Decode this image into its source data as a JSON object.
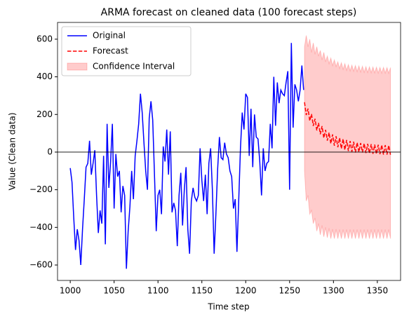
{
  "chart_data": {
    "type": "line",
    "title": "ARMA forecast on cleaned data (100 forecast steps)",
    "x_label": "Time step",
    "y_label": "Value (Clean data)",
    "xlim": [
      985.5,
      1376.5
    ],
    "xticks": [
      1000,
      1050,
      1100,
      1150,
      1200,
      1250,
      1300,
      1350
    ],
    "ylim": [
      -682,
      689
    ],
    "yticks": [
      {
        "value": -600,
        "label": "−600"
      },
      {
        "value": -400,
        "label": "−400"
      },
      {
        "value": -200,
        "label": "−200"
      },
      0,
      200,
      400,
      600
    ],
    "hline": 0,
    "legend": "upper left",
    "series": [
      {
        "name": "Original",
        "color": "#0000ff",
        "style": "solid",
        "x": [
          1000,
          1002,
          1004,
          1006,
          1008,
          1010,
          1012,
          1014,
          1016,
          1018,
          1020,
          1022,
          1024,
          1026,
          1028,
          1030,
          1032,
          1034,
          1036,
          1038,
          1040,
          1042,
          1044,
          1046,
          1048,
          1050,
          1052,
          1054,
          1056,
          1058,
          1060,
          1062,
          1064,
          1066,
          1068,
          1070,
          1072,
          1074,
          1076,
          1078,
          1080,
          1082,
          1084,
          1086,
          1088,
          1090,
          1092,
          1094,
          1096,
          1098,
          1100,
          1102,
          1104,
          1106,
          1108,
          1110,
          1112,
          1114,
          1116,
          1118,
          1120,
          1122,
          1124,
          1126,
          1128,
          1130,
          1132,
          1134,
          1136,
          1138,
          1140,
          1142,
          1144,
          1146,
          1148,
          1150,
          1152,
          1154,
          1156,
          1158,
          1160,
          1162,
          1164,
          1166,
          1168,
          1170,
          1172,
          1174,
          1176,
          1178,
          1180,
          1182,
          1184,
          1186,
          1188,
          1190,
          1192,
          1194,
          1196,
          1198,
          1200,
          1202,
          1204,
          1206,
          1208,
          1210,
          1212,
          1214,
          1216,
          1218,
          1220,
          1222,
          1224,
          1226,
          1228,
          1230,
          1232,
          1234,
          1236,
          1238,
          1240,
          1242,
          1244,
          1246,
          1248,
          1250,
          1252,
          1254,
          1256,
          1258,
          1260,
          1262,
          1264,
          1266
        ],
        "values": [
          -85,
          -160,
          -350,
          -520,
          -410,
          -470,
          -600,
          -410,
          -250,
          -80,
          -60,
          60,
          -120,
          -60,
          10,
          -230,
          -430,
          -310,
          -380,
          -20,
          -490,
          150,
          -190,
          -50,
          150,
          -300,
          -10,
          -130,
          -100,
          -320,
          -180,
          -230,
          -620,
          -420,
          -290,
          -100,
          -250,
          -20,
          60,
          150,
          310,
          210,
          50,
          -100,
          -200,
          180,
          270,
          170,
          -120,
          -420,
          -230,
          -200,
          -330,
          30,
          -50,
          120,
          -120,
          110,
          -320,
          -270,
          -310,
          -500,
          -230,
          -110,
          -390,
          -200,
          -80,
          -410,
          -540,
          -260,
          -190,
          -240,
          -260,
          -230,
          20,
          -150,
          -260,
          -120,
          -330,
          -60,
          20,
          -200,
          -540,
          -330,
          -90,
          80,
          -30,
          -40,
          50,
          -10,
          -30,
          -100,
          -130,
          -300,
          -250,
          -530,
          -260,
          20,
          210,
          120,
          310,
          290,
          -20,
          230,
          -80,
          200,
          80,
          70,
          -50,
          -230,
          20,
          -100,
          -60,
          -50,
          150,
          20,
          400,
          140,
          370,
          260,
          330,
          310,
          300,
          370,
          430,
          -200,
          580,
          130,
          360,
          330,
          270,
          330,
          460,
          330
        ]
      },
      {
        "name": "Forecast",
        "color": "#ff0000",
        "style": "dashed",
        "x": [
          1267,
          1269,
          1271,
          1273,
          1275,
          1277,
          1279,
          1281,
          1283,
          1285,
          1287,
          1289,
          1291,
          1293,
          1295,
          1297,
          1299,
          1301,
          1303,
          1305,
          1307,
          1309,
          1311,
          1313,
          1315,
          1317,
          1319,
          1321,
          1323,
          1325,
          1327,
          1329,
          1331,
          1333,
          1335,
          1337,
          1339,
          1341,
          1343,
          1345,
          1347,
          1349,
          1351,
          1353,
          1355,
          1357,
          1359,
          1361,
          1363,
          1365
        ],
        "values": [
          265,
          197,
          231,
          166,
          202,
          139,
          177,
          115,
          155,
          95,
          138,
          75,
          118,
          61,
          104,
          45,
          94,
          34,
          84,
          26,
          76,
          18,
          70,
          12,
          64,
          6,
          59,
          2,
          55,
          -2,
          51,
          0,
          48,
          -2,
          46,
          -5,
          44,
          -6,
          42,
          -9,
          40,
          -10,
          39,
          -11,
          38,
          -13,
          37,
          -13,
          36,
          -14
        ]
      },
      {
        "name": "Confidence Interval",
        "color": "#ff0000",
        "style": "band",
        "opacity": 0.2,
        "x": [
          1267,
          1269,
          1271,
          1273,
          1275,
          1277,
          1279,
          1281,
          1283,
          1285,
          1287,
          1289,
          1291,
          1293,
          1295,
          1297,
          1299,
          1301,
          1303,
          1305,
          1307,
          1309,
          1311,
          1313,
          1315,
          1317,
          1319,
          1321,
          1323,
          1325,
          1327,
          1329,
          1331,
          1333,
          1335,
          1337,
          1339,
          1341,
          1343,
          1345,
          1347,
          1349,
          1351,
          1353,
          1355,
          1357,
          1359,
          1361,
          1363,
          1365
        ],
        "upper": [
          560,
          620,
          560,
          600,
          530,
          580,
          520,
          560,
          510,
          540,
          490,
          530,
          480,
          510,
          470,
          500,
          460,
          490,
          455,
          480,
          445,
          475,
          440,
          470,
          435,
          465,
          432,
          462,
          430,
          460,
          428,
          458,
          426,
          456,
          424,
          454,
          423,
          453,
          422,
          452,
          421,
          451,
          420,
          450,
          420,
          450,
          420,
          449,
          419,
          449
        ],
        "lower": [
          -100,
          -260,
          -230,
          -330,
          -310,
          -380,
          -350,
          -420,
          -380,
          -440,
          -390,
          -450,
          -400,
          -455,
          -405,
          -460,
          -410,
          -460,
          -410,
          -460,
          -412,
          -460,
          -412,
          -460,
          -412,
          -460,
          -412,
          -460,
          -412,
          -460,
          -412,
          -460,
          -412,
          -460,
          -412,
          -460,
          -412,
          -460,
          -412,
          -460,
          -412,
          -460,
          -412,
          -460,
          -412,
          -460,
          -412,
          -460,
          -412,
          -460
        ]
      }
    ]
  }
}
